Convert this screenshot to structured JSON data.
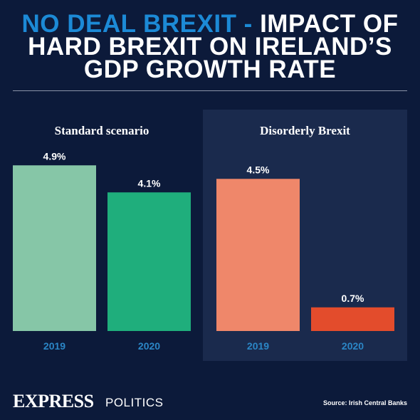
{
  "title": {
    "accent": "NO DEAL BREXIT -",
    "line1_rest": "IMPACT OF",
    "line2": "HARD BREXIT ON IRELAND’S",
    "line3": "GDP GROWTH RATE"
  },
  "chart_data": [
    {
      "type": "bar",
      "title": "Standard scenario",
      "categories": [
        "2019",
        "2020"
      ],
      "values": [
        4.9,
        4.1
      ],
      "data_labels": [
        "4.9%",
        "4.1%"
      ],
      "colors": [
        "#86c6a7",
        "#1fae7c"
      ]
    },
    {
      "type": "bar",
      "title": "Disorderly Brexit",
      "categories": [
        "2019",
        "2020"
      ],
      "values": [
        4.5,
        0.7
      ],
      "data_labels": [
        "4.5%",
        "0.7%"
      ],
      "colors": [
        "#ef876a",
        "#e34c2c"
      ]
    }
  ],
  "colors": {
    "background": "#0c1a3a",
    "panel": "#1a2a4d",
    "accent": "#1c8ad6",
    "axis_label": "#2b86c6"
  },
  "footer": {
    "brand": "EXPRESS",
    "section": "POLITICS",
    "source": "Source: Irish Central Banks"
  }
}
